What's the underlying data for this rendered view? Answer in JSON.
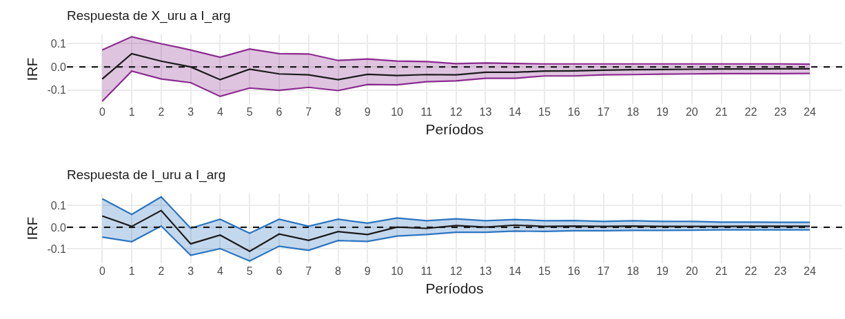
{
  "chart_data": [
    {
      "type": "line",
      "title": "Respuesta de X_uru a I_arg",
      "xlabel": "Períodos",
      "ylabel": "IRF",
      "x": [
        0,
        1,
        2,
        3,
        4,
        5,
        6,
        7,
        8,
        9,
        10,
        11,
        12,
        13,
        14,
        15,
        16,
        17,
        18,
        19,
        20,
        21,
        22,
        23,
        24
      ],
      "series": [
        {
          "color": "#8b2a8e",
          "values": [
            -0.148,
            -0.018,
            -0.052,
            -0.068,
            -0.127,
            -0.091,
            -0.101,
            -0.088,
            -0.102,
            -0.076,
            -0.077,
            -0.064,
            -0.06,
            -0.049,
            -0.049,
            -0.039,
            -0.039,
            -0.034,
            -0.033,
            -0.031,
            -0.03,
            -0.029,
            -0.029,
            -0.029,
            -0.028
          ]
        },
        {
          "color": "#8b2a8e",
          "values": [
            0.073,
            0.13,
            0.1,
            0.073,
            0.042,
            0.077,
            0.057,
            0.056,
            0.028,
            0.034,
            0.025,
            0.023,
            0.014,
            0.017,
            0.015,
            0.013,
            0.013,
            0.013,
            0.013,
            0.013,
            0.013,
            0.013,
            0.013,
            0.013,
            0.012
          ]
        },
        {
          "color": "#1a1a1a",
          "values": [
            -0.052,
            0.057,
            0.025,
            0.0,
            -0.055,
            -0.01,
            -0.03,
            -0.034,
            -0.055,
            -0.032,
            -0.037,
            -0.033,
            -0.034,
            -0.023,
            -0.023,
            -0.018,
            -0.017,
            -0.014,
            -0.012,
            -0.011,
            -0.01,
            -0.009,
            -0.009,
            -0.008,
            -0.008
          ],
          "lower": [
            -0.148,
            -0.018,
            -0.052,
            -0.068,
            -0.127,
            -0.091,
            -0.101,
            -0.088,
            -0.102,
            -0.076,
            -0.077,
            -0.064,
            -0.06,
            -0.049,
            -0.049,
            -0.039,
            -0.039,
            -0.034,
            -0.033,
            -0.031,
            -0.03,
            -0.029,
            -0.029,
            -0.029,
            -0.028
          ],
          "upper": [
            0.073,
            0.13,
            0.1,
            0.073,
            0.042,
            0.077,
            0.057,
            0.056,
            0.028,
            0.034,
            0.025,
            0.023,
            0.014,
            0.017,
            0.015,
            0.013,
            0.013,
            0.013,
            0.013,
            0.013,
            0.013,
            0.013,
            0.013,
            0.013,
            0.012
          ]
        }
      ],
      "ref_lines": [
        {
          "axis": "y",
          "value": 0,
          "color": "#1a1a1a",
          "line_style": "dashed"
        }
      ],
      "xlim": [
        -1.2,
        25.1
      ],
      "xticks": [
        0,
        1,
        2,
        3,
        4,
        5,
        6,
        7,
        8,
        9,
        10,
        11,
        12,
        13,
        14,
        15,
        16,
        17,
        18,
        19,
        20,
        21,
        22,
        23,
        24
      ],
      "ylim": [
        -0.16,
        0.14
      ],
      "yticks": [
        {
          "value": -0.1,
          "label": "-0.1"
        },
        {
          "value": 0,
          "label": "0.0"
        },
        {
          "value": 0.1,
          "label": "0.1"
        }
      ],
      "grid": true
    },
    {
      "type": "line",
      "title": "Respuesta de I_uru a I_arg",
      "xlabel": "Períodos",
      "ylabel": "IRF",
      "x": [
        0,
        1,
        2,
        3,
        4,
        5,
        6,
        7,
        8,
        9,
        10,
        11,
        12,
        13,
        14,
        15,
        16,
        17,
        18,
        19,
        20,
        21,
        22,
        23,
        24
      ],
      "series": [
        {
          "color": "#2a74c0",
          "values": [
            -0.045,
            -0.066,
            0.006,
            -0.129,
            -0.098,
            -0.155,
            -0.087,
            -0.106,
            -0.061,
            -0.065,
            -0.04,
            -0.033,
            -0.023,
            -0.023,
            -0.017,
            -0.019,
            -0.016,
            -0.016,
            -0.014,
            -0.014,
            -0.013,
            -0.012,
            -0.012,
            -0.012,
            -0.012
          ]
        },
        {
          "color": "#2a74c0",
          "values": [
            0.131,
            0.059,
            0.14,
            -0.004,
            0.037,
            -0.027,
            0.037,
            0.005,
            0.037,
            0.019,
            0.043,
            0.03,
            0.039,
            0.03,
            0.036,
            0.03,
            0.031,
            0.027,
            0.03,
            0.027,
            0.027,
            0.024,
            0.024,
            0.023,
            0.023
          ]
        },
        {
          "color": "#1a1a1a",
          "values": [
            0.052,
            0.004,
            0.077,
            -0.076,
            -0.036,
            -0.11,
            -0.031,
            -0.06,
            -0.02,
            -0.033,
            0.001,
            -0.005,
            0.008,
            0.001,
            0.01,
            0.004,
            0.006,
            0.004,
            0.006,
            0.004,
            0.004,
            0.004,
            0.005,
            0.005,
            0.005
          ],
          "lower": [
            -0.045,
            -0.066,
            0.006,
            -0.129,
            -0.098,
            -0.155,
            -0.087,
            -0.106,
            -0.061,
            -0.065,
            -0.04,
            -0.033,
            -0.023,
            -0.023,
            -0.017,
            -0.019,
            -0.016,
            -0.016,
            -0.014,
            -0.014,
            -0.013,
            -0.012,
            -0.012,
            -0.012,
            -0.012
          ],
          "upper": [
            0.131,
            0.059,
            0.14,
            -0.004,
            0.037,
            -0.027,
            0.037,
            0.005,
            0.037,
            0.019,
            0.043,
            0.03,
            0.039,
            0.03,
            0.036,
            0.03,
            0.031,
            0.027,
            0.03,
            0.027,
            0.027,
            0.024,
            0.024,
            0.023,
            0.023
          ]
        }
      ],
      "ref_lines": [
        {
          "axis": "y",
          "value": 0,
          "color": "#1a1a1a",
          "line_style": "dashed"
        }
      ],
      "xlim": [
        -1.2,
        25.1
      ],
      "xticks": [
        0,
        1,
        2,
        3,
        4,
        5,
        6,
        7,
        8,
        9,
        10,
        11,
        12,
        13,
        14,
        15,
        16,
        17,
        18,
        19,
        20,
        21,
        22,
        23,
        24
      ],
      "ylim": [
        -0.165,
        0.155
      ],
      "yticks": [
        {
          "value": -0.1,
          "label": "-0.1"
        },
        {
          "value": 0,
          "label": "0.0"
        },
        {
          "value": 0.1,
          "label": "0.1"
        }
      ],
      "grid": true
    }
  ]
}
